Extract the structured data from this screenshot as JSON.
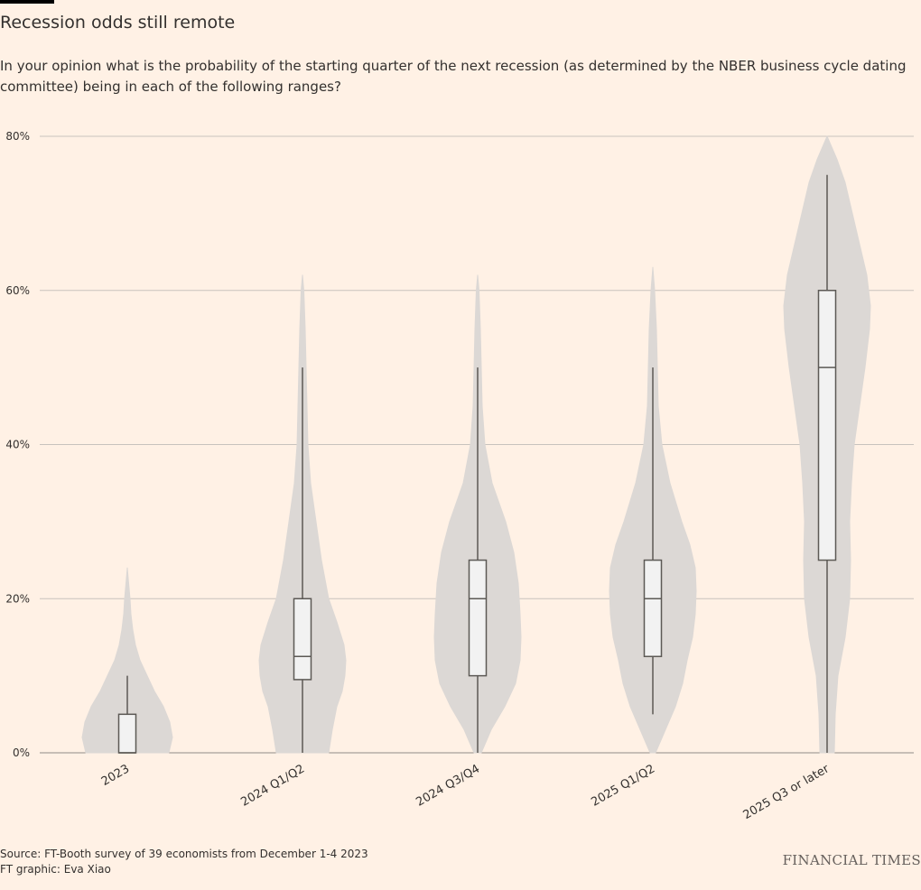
{
  "header": {
    "title": "Recession odds still remote",
    "subtitle": "In your opinion what is the probability of the starting quarter of the next recession (as determined by the NBER business cycle dating committee) being in each of the following ranges?"
  },
  "footer": {
    "source": "Source: FT-Booth survey of 39 economists from December 1-4 2023",
    "credit": "FT graphic: Eva Xiao",
    "brand": "FINANCIAL TIMES"
  },
  "colors": {
    "background": "#fff1e5",
    "violin": "#dcd8d5",
    "box_fill": "#f2f2f2",
    "box_stroke": "#5c5955",
    "gridline": "#c8c2bd",
    "text": "#33302e"
  },
  "chart_data": {
    "type": "violin",
    "categories": [
      "2023",
      "2024 Q1/Q2",
      "2024 Q3/Q4",
      "2025 Q1/Q2",
      "2025 Q3 or later"
    ],
    "y_ticks": [
      0,
      20,
      40,
      60,
      80
    ],
    "y_tick_labels": [
      "0%",
      "20%",
      "40%",
      "60%",
      "80%"
    ],
    "ylim": [
      0,
      80
    ],
    "grid": true,
    "series": [
      {
        "box": {
          "min": 0,
          "q1": 0,
          "median": 0,
          "q3": 5,
          "max": 10
        },
        "density": [
          [
            0,
            46
          ],
          [
            2,
            50
          ],
          [
            4,
            47
          ],
          [
            6,
            40
          ],
          [
            8,
            30
          ],
          [
            10,
            22
          ],
          [
            12,
            14
          ],
          [
            14,
            9
          ],
          [
            16,
            6
          ],
          [
            18,
            4
          ],
          [
            20,
            3
          ],
          [
            22,
            1.5
          ],
          [
            24,
            0
          ]
        ]
      },
      {
        "box": {
          "min": 0,
          "q1": 9.5,
          "median": 12.5,
          "q3": 20,
          "max": 50
        },
        "density": [
          [
            0,
            29
          ],
          [
            3,
            33
          ],
          [
            6,
            38
          ],
          [
            8,
            44
          ],
          [
            10,
            47
          ],
          [
            12,
            48
          ],
          [
            14,
            46
          ],
          [
            17,
            38
          ],
          [
            20,
            29
          ],
          [
            25,
            21
          ],
          [
            30,
            15
          ],
          [
            35,
            9
          ],
          [
            40,
            6
          ],
          [
            45,
            5
          ],
          [
            50,
            4
          ],
          [
            55,
            3
          ],
          [
            60,
            1.5
          ],
          [
            62,
            0
          ]
        ]
      },
      {
        "box": {
          "min": 0,
          "q1": 10,
          "median": 20,
          "q3": 25,
          "max": 50
        },
        "density": [
          [
            0,
            4
          ],
          [
            3,
            15
          ],
          [
            6,
            30
          ],
          [
            9,
            42
          ],
          [
            12,
            47
          ],
          [
            15,
            48
          ],
          [
            18,
            47
          ],
          [
            22,
            45
          ],
          [
            26,
            40
          ],
          [
            30,
            31
          ],
          [
            35,
            16
          ],
          [
            40,
            8
          ],
          [
            45,
            5
          ],
          [
            50,
            4
          ],
          [
            55,
            3
          ],
          [
            60,
            1.5
          ],
          [
            62,
            0
          ]
        ]
      },
      {
        "box": {
          "min": 5,
          "q1": 12.5,
          "median": 20,
          "q3": 25,
          "max": 50
        },
        "density": [
          [
            0,
            3
          ],
          [
            3,
            14
          ],
          [
            6,
            25
          ],
          [
            9,
            33
          ],
          [
            12,
            38
          ],
          [
            15,
            44
          ],
          [
            18,
            47
          ],
          [
            21,
            48
          ],
          [
            24,
            47
          ],
          [
            27,
            41
          ],
          [
            30,
            32
          ],
          [
            35,
            19
          ],
          [
            40,
            10
          ],
          [
            45,
            6
          ],
          [
            50,
            5
          ],
          [
            55,
            4
          ],
          [
            60,
            2
          ],
          [
            63,
            0
          ]
        ]
      },
      {
        "box": {
          "min": 0,
          "q1": 25,
          "median": 50,
          "q3": 60,
          "max": 75
        },
        "density": [
          [
            0,
            8
          ],
          [
            5,
            9
          ],
          [
            10,
            12
          ],
          [
            15,
            20
          ],
          [
            20,
            25
          ],
          [
            25,
            26
          ],
          [
            30,
            25
          ],
          [
            35,
            27
          ],
          [
            40,
            30
          ],
          [
            45,
            36
          ],
          [
            50,
            42
          ],
          [
            55,
            47
          ],
          [
            58,
            48
          ],
          [
            62,
            44
          ],
          [
            65,
            38
          ],
          [
            70,
            28
          ],
          [
            74,
            20
          ],
          [
            77,
            11
          ],
          [
            80,
            0
          ]
        ]
      }
    ]
  }
}
